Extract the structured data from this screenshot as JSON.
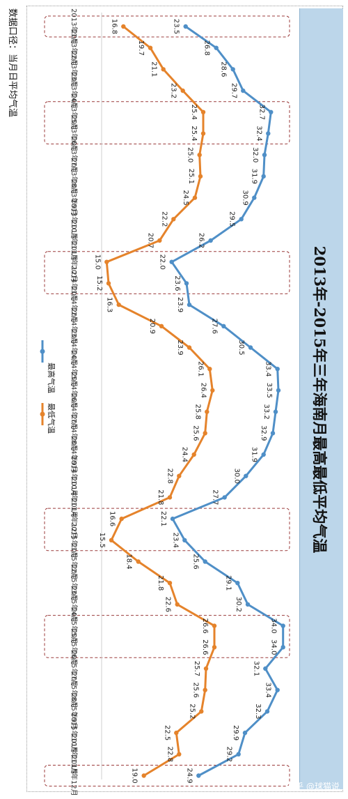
{
  "note": "数据口径：当月日平均气温",
  "watermark": "知乎 @球猫说",
  "chart_data": {
    "type": "line",
    "title": "2013年-2015年三年海南月最高最低平均气温",
    "categories": [
      "2013年1月",
      "2013年2月",
      "2013年3月",
      "2013年4月",
      "2013年5月",
      "2013年6月",
      "2013年7月",
      "2013年8月",
      "2013年9月",
      "2013年10月",
      "2013年11月",
      "2013年12月",
      "2014年1月",
      "2014年2月",
      "2014年3月",
      "2014年4月",
      "2014年5月",
      "2014年6月",
      "2014年7月",
      "2014年8月",
      "2014年9月",
      "2014年10月",
      "2014年11月",
      "2014年12月",
      "2015年1月",
      "2015年2月",
      "2015年3月",
      "2015年4月",
      "2015年5月",
      "2015年6月",
      "2015年7月",
      "2015年8月",
      "2015年9月",
      "2015年10月",
      "2015年11月",
      "2015年12月"
    ],
    "series": [
      {
        "name": "最高气温",
        "color": "#4f8fc7",
        "values": [
          23.5,
          26.8,
          28.6,
          29.7,
          32.7,
          32.4,
          32.0,
          31.9,
          30.9,
          29.5,
          26.2,
          22.0,
          23.6,
          23.9,
          27.6,
          30.5,
          33.4,
          33.5,
          33.2,
          32.9,
          31.9,
          30.0,
          27.7,
          22.1,
          23.4,
          25.6,
          29.1,
          30.2,
          34.0,
          34.0,
          32.1,
          33.4,
          32.3,
          29.9,
          29.2,
          24.9
        ]
      },
      {
        "name": "最低气温",
        "color": "#e5832b",
        "values": [
          16.8,
          19.7,
          21.1,
          23.2,
          25.4,
          25.4,
          25.0,
          25.1,
          24.5,
          22.2,
          20.7,
          15.0,
          15.2,
          16.3,
          20.9,
          23.9,
          26.1,
          26.4,
          25.8,
          25.6,
          24.4,
          22.8,
          21.8,
          16.6,
          15.5,
          18.4,
          21.8,
          22.6,
          26.6,
          26.6,
          25.7,
          25.6,
          25.2,
          22.5,
          22.8,
          19.0
        ]
      }
    ],
    "highlighted_months": [
      "2013年1月",
      "2013年5月-2013年6月",
      "2013年12月-2014年1月",
      "2014年12月-2015年1月",
      "2015年5月-2015年6月",
      "2015年12月"
    ],
    "legend_position": "right, vertical"
  }
}
